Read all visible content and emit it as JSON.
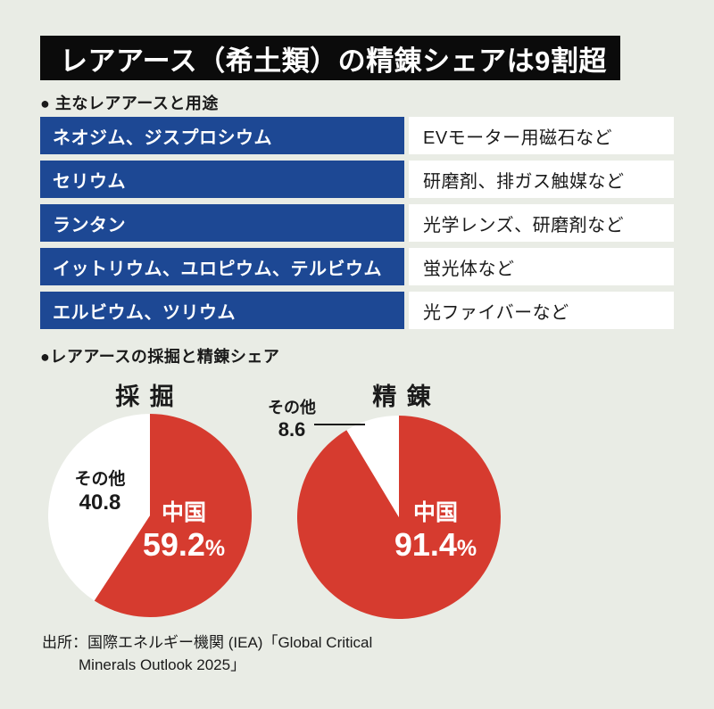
{
  "colors": {
    "background": "#e9ece5",
    "banner_bg": "#0b0b0b",
    "banner_text": "#ffffff",
    "element_blue": "#1d4894",
    "china_red": "#d63b2f",
    "other_white": "#ffffff",
    "text": "#1a1a1a"
  },
  "header": {
    "title": "レアアース（希土類）の精錬シェアは9割超"
  },
  "uses_section": {
    "heading": "● 主なレアアースと用途",
    "rows": [
      {
        "element": "ネオジム、ジスプロシウム",
        "use": "EVモーター用磁石など"
      },
      {
        "element": "セリウム",
        "use": "研磨剤、排ガス触媒など"
      },
      {
        "element": "ランタン",
        "use": "光学レンズ、研磨剤など"
      },
      {
        "element": "イットリウム、ユロピウム、テルビウム",
        "use": "蛍光体など"
      },
      {
        "element": "エルビウム、ツリウム",
        "use": "光ファイバーなど"
      }
    ]
  },
  "share_section": {
    "heading": "●レアアースの採掘と精錬シェア"
  },
  "chart_data": [
    {
      "type": "pie",
      "title": "採 掘",
      "start_angle_deg": 0,
      "direction": "clockwise",
      "legend": "none",
      "series": [
        {
          "key": "china",
          "name": "中国",
          "value": 59.2,
          "value_label": "59.2",
          "unit": "%",
          "color": "#d63b2f",
          "label_color": "#ffffff"
        },
        {
          "key": "other",
          "name": "その他",
          "value": 40.8,
          "value_label": "40.8",
          "unit": "",
          "color": "#ffffff",
          "label_color": "#1a1a1a"
        }
      ]
    },
    {
      "type": "pie",
      "title": "精 錬",
      "start_angle_deg": 0,
      "direction": "clockwise",
      "legend": "none",
      "series": [
        {
          "key": "china",
          "name": "中国",
          "value": 91.4,
          "value_label": "91.4",
          "unit": "%",
          "color": "#d63b2f",
          "label_color": "#ffffff"
        },
        {
          "key": "other",
          "name": "その他",
          "value": 8.6,
          "value_label": "8.6",
          "unit": "",
          "color": "#ffffff",
          "label_color": "#1a1a1a"
        }
      ]
    }
  ],
  "source": {
    "line1": "出所：国際エネルギー機関 (IEA)「Global Critical",
    "line2": "Minerals Outlook 2025」"
  }
}
